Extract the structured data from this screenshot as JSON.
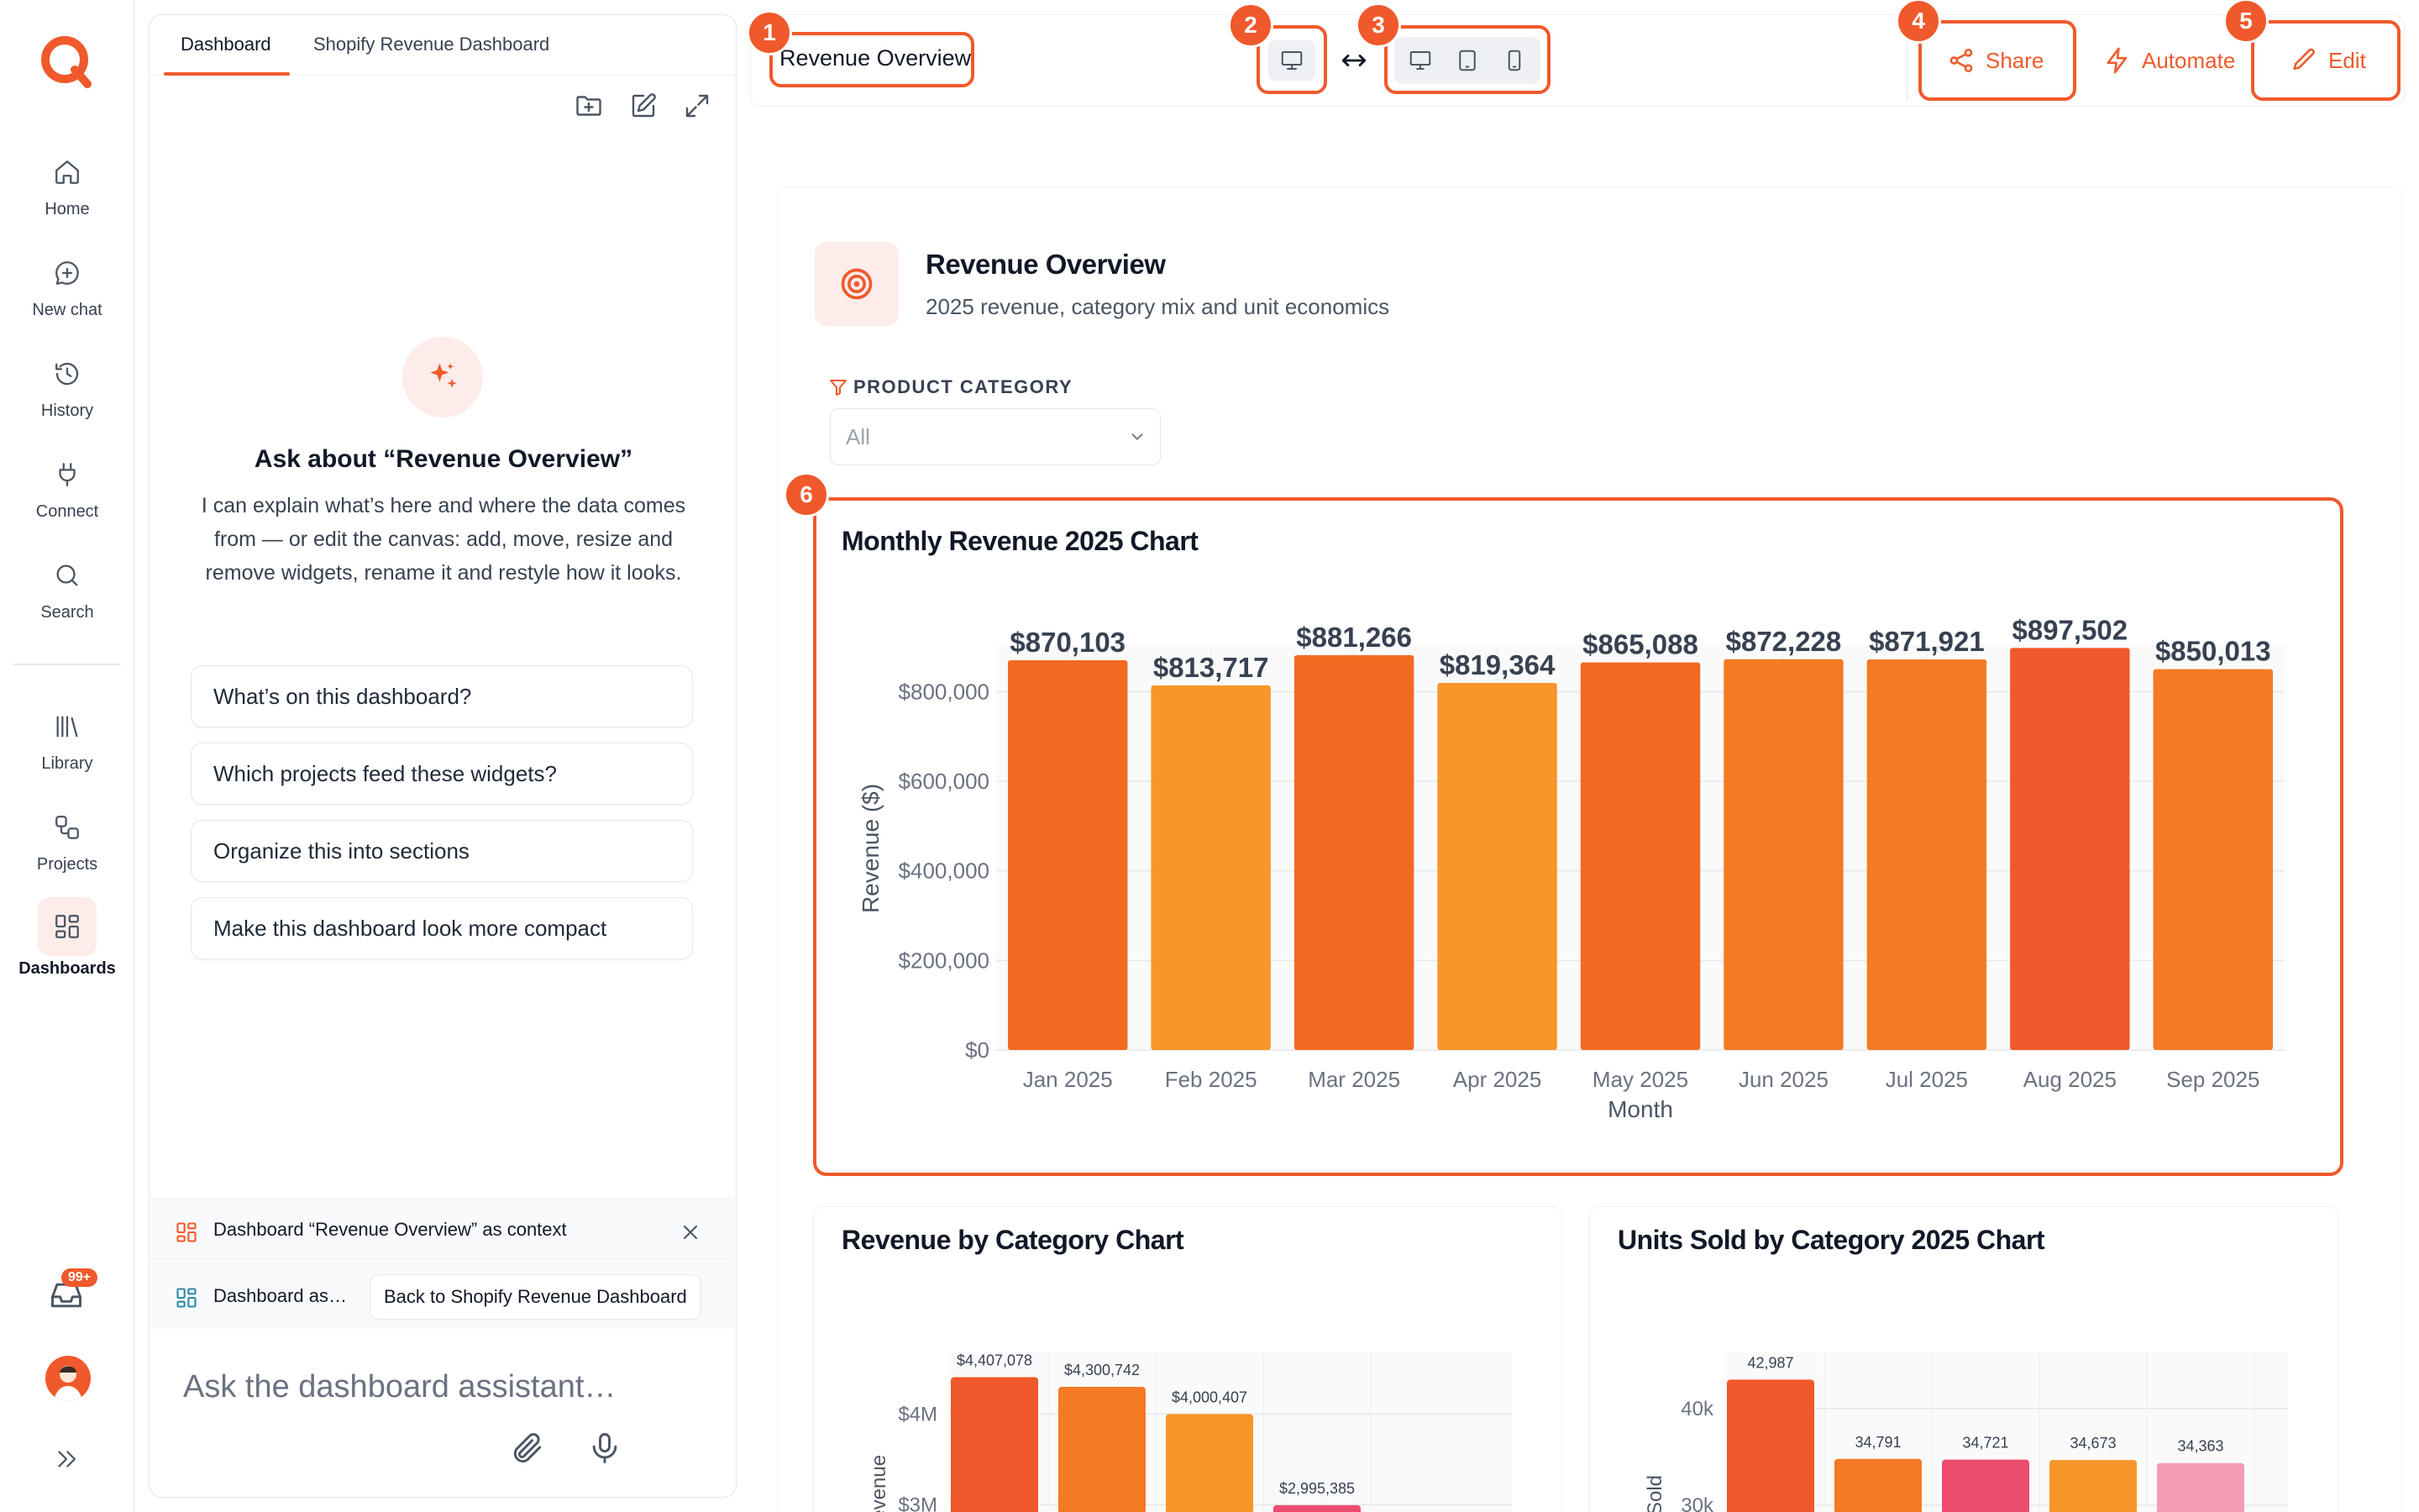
{
  "nav": {
    "items": [
      {
        "label": "Home",
        "icon": "home-icon"
      },
      {
        "label": "New chat",
        "icon": "chat-plus-icon"
      },
      {
        "label": "History",
        "icon": "history-icon"
      },
      {
        "label": "Connect",
        "icon": "plug-icon"
      },
      {
        "label": "Search",
        "icon": "search-icon"
      },
      {
        "label": "Library",
        "icon": "library-icon"
      },
      {
        "label": "Projects",
        "icon": "projects-icon"
      },
      {
        "label": "Dashboards",
        "icon": "dashboards-icon"
      }
    ],
    "inbox_badge": "99+"
  },
  "assistant": {
    "tabs": [
      "Dashboard",
      "Shopify Revenue Dashboard"
    ],
    "heading": "Ask about “Revenue Overview”",
    "description": "I can explain what’s here and where the data comes from — or edit the canvas: add, move, resize and remove widgets, rename it and restyle how it looks.",
    "suggestions": [
      "What’s on this dashboard?",
      "Which projects feed these widgets?",
      "Organize this into sections",
      "Make this dashboard look more compact"
    ],
    "context_label": "Dashboard “Revenue Overview” as context",
    "context_short": "Dashboard as…",
    "back_button": "Back to Shopify Revenue Dashboard",
    "input_placeholder": "Ask the dashboard assistant…"
  },
  "toolbar": {
    "title": "Revenue Overview",
    "share": "Share",
    "automate": "Automate",
    "edit": "Edit",
    "markers": [
      "1",
      "2",
      "3",
      "4",
      "5",
      "6"
    ]
  },
  "dashboard": {
    "title": "Revenue Overview",
    "subtitle": "2025 revenue, category mix and unit economics",
    "filter_label": "PRODUCT CATEGORY",
    "filter_value": "All"
  },
  "colors": {
    "accent": "#f0592b",
    "bars": [
      "#f26a22",
      "#f7962a",
      "#f26a22",
      "#f7962a",
      "#f26a22",
      "#f47a24",
      "#f47a24",
      "#f0592b",
      "#f47a24"
    ]
  },
  "chart_data": [
    {
      "type": "bar",
      "title": "Monthly Revenue 2025 Chart",
      "categories": [
        "Jan 2025",
        "Feb 2025",
        "Mar 2025",
        "Apr 2025",
        "May 2025",
        "Jun 2025",
        "Jul 2025",
        "Aug 2025",
        "Sep 2025"
      ],
      "values": [
        870103,
        813717,
        881266,
        819364,
        865088,
        872228,
        871921,
        897502,
        850013
      ],
      "labels": [
        "$870,103",
        "$813,717",
        "$881,266",
        "$819,364",
        "$865,088",
        "$872,228",
        "$871,921",
        "$897,502",
        "$850,013"
      ],
      "xlabel": "Month",
      "ylabel": "Revenue ($)",
      "ylim": [
        0,
        900000
      ],
      "yticks": [
        0,
        200000,
        400000,
        600000,
        800000
      ],
      "ytick_labels": [
        "$0",
        "$200,000",
        "$400,000",
        "$600,000",
        "$800,000"
      ],
      "grid": true
    },
    {
      "type": "bar",
      "title": "Revenue by Category Chart",
      "values": [
        4407078,
        4300742,
        4000407,
        2995385
      ],
      "labels": [
        "$4,407,078",
        "$4,300,742",
        "$4,000,407",
        "$2,995,385"
      ],
      "colors": [
        "#f0592b",
        "#f47a24",
        "#f7962a",
        "#ec4d6e"
      ],
      "ylabel": "Revenue",
      "yticks": [
        3000000,
        4000000
      ],
      "ytick_labels": [
        "$3M",
        "$4M"
      ],
      "grid": true
    },
    {
      "type": "bar",
      "title": "Units Sold by Category 2025 Chart",
      "values": [
        42987,
        34791,
        34721,
        34673,
        34363
      ],
      "labels": [
        "42,987",
        "34,791",
        "34,721",
        "34,673",
        "34,363"
      ],
      "colors": [
        "#f0592b",
        "#f47a24",
        "#ec4d6e",
        "#f7962a",
        "#f59bb5"
      ],
      "ylabel": "Sold",
      "yticks": [
        30000,
        40000
      ],
      "ytick_labels": [
        "30k",
        "40k"
      ],
      "grid": true
    }
  ]
}
